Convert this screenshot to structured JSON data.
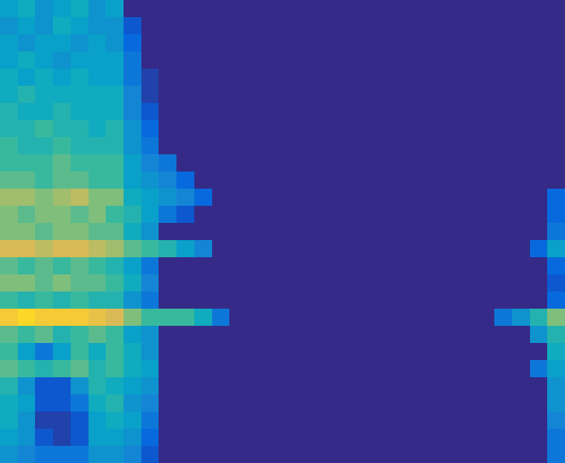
{
  "chart_data": {
    "type": "heatmap",
    "tick_labels": false,
    "grid": false,
    "xlim": [
      0,
      32
    ],
    "ylim": [
      0,
      27
    ],
    "color_range": [
      0,
      1
    ],
    "cells": [
      [
        0.35,
        0.4,
        0.3,
        0.35,
        0.4,
        0.3,
        0.35,
        0,
        0,
        0,
        0,
        0,
        0,
        0,
        0,
        0,
        0,
        0,
        0,
        0,
        0,
        0,
        0,
        0,
        0,
        0,
        0,
        0,
        0,
        0,
        0,
        0
      ],
      [
        0.3,
        0.35,
        0.3,
        0.4,
        0.35,
        0.3,
        0.3,
        0.1,
        0,
        0,
        0,
        0,
        0,
        0,
        0,
        0,
        0,
        0,
        0,
        0,
        0,
        0,
        0,
        0,
        0,
        0,
        0,
        0,
        0,
        0,
        0,
        0
      ],
      [
        0.35,
        0.3,
        0.35,
        0.35,
        0.3,
        0.35,
        0.3,
        0.15,
        0,
        0,
        0,
        0,
        0,
        0,
        0,
        0,
        0,
        0,
        0,
        0,
        0,
        0,
        0,
        0,
        0,
        0,
        0,
        0,
        0,
        0,
        0,
        0
      ],
      [
        0.35,
        0.4,
        0.35,
        0.3,
        0.35,
        0.35,
        0.35,
        0.2,
        0,
        0,
        0,
        0,
        0,
        0,
        0,
        0,
        0,
        0,
        0,
        0,
        0,
        0,
        0,
        0,
        0,
        0,
        0,
        0,
        0,
        0,
        0,
        0
      ],
      [
        0.4,
        0.35,
        0.4,
        0.35,
        0.4,
        0.35,
        0.35,
        0.2,
        0.05,
        0,
        0,
        0,
        0,
        0,
        0,
        0,
        0,
        0,
        0,
        0,
        0,
        0,
        0,
        0,
        0,
        0,
        0,
        0,
        0,
        0,
        0,
        0
      ],
      [
        0.4,
        0.45,
        0.4,
        0.4,
        0.4,
        0.4,
        0.4,
        0.25,
        0.05,
        0,
        0,
        0,
        0,
        0,
        0,
        0,
        0,
        0,
        0,
        0,
        0,
        0,
        0,
        0,
        0,
        0,
        0,
        0,
        0,
        0,
        0,
        0
      ],
      [
        0.45,
        0.4,
        0.4,
        0.45,
        0.4,
        0.4,
        0.4,
        0.25,
        0.1,
        0,
        0,
        0,
        0,
        0,
        0,
        0,
        0,
        0,
        0,
        0,
        0,
        0,
        0,
        0,
        0,
        0,
        0,
        0,
        0,
        0,
        0,
        0
      ],
      [
        0.45,
        0.45,
        0.5,
        0.45,
        0.45,
        0.4,
        0.45,
        0.3,
        0.15,
        0,
        0,
        0,
        0,
        0,
        0,
        0,
        0,
        0,
        0,
        0,
        0,
        0,
        0,
        0,
        0,
        0,
        0,
        0,
        0,
        0,
        0,
        0
      ],
      [
        0.5,
        0.45,
        0.45,
        0.5,
        0.45,
        0.45,
        0.45,
        0.3,
        0.2,
        0,
        0,
        0,
        0,
        0,
        0,
        0,
        0,
        0,
        0,
        0,
        0,
        0,
        0,
        0,
        0,
        0,
        0,
        0,
        0,
        0,
        0,
        0
      ],
      [
        0.5,
        0.5,
        0.5,
        0.55,
        0.5,
        0.5,
        0.5,
        0.35,
        0.25,
        0.2,
        0,
        0,
        0,
        0,
        0,
        0,
        0,
        0,
        0,
        0,
        0,
        0,
        0,
        0,
        0,
        0,
        0,
        0,
        0,
        0,
        0,
        0
      ],
      [
        0.55,
        0.55,
        0.5,
        0.55,
        0.55,
        0.5,
        0.5,
        0.35,
        0.3,
        0.25,
        0.15,
        0,
        0,
        0,
        0,
        0,
        0,
        0,
        0,
        0,
        0,
        0,
        0,
        0,
        0,
        0,
        0,
        0,
        0,
        0,
        0,
        0
      ],
      [
        0.65,
        0.65,
        0.6,
        0.65,
        0.7,
        0.6,
        0.6,
        0.4,
        0.35,
        0.3,
        0.25,
        0.15,
        0,
        0,
        0,
        0,
        0,
        0,
        0,
        0,
        0,
        0,
        0,
        0,
        0,
        0,
        0,
        0,
        0,
        0,
        0,
        0.15
      ],
      [
        0.6,
        0.55,
        0.6,
        0.6,
        0.55,
        0.6,
        0.5,
        0.45,
        0.35,
        0.2,
        0.1,
        0,
        0,
        0,
        0,
        0,
        0,
        0,
        0,
        0,
        0,
        0,
        0,
        0,
        0,
        0,
        0,
        0,
        0,
        0,
        0,
        0.15
      ],
      [
        0.6,
        0.6,
        0.55,
        0.6,
        0.6,
        0.55,
        0.55,
        0.4,
        0.3,
        0,
        0,
        0,
        0,
        0,
        0,
        0,
        0,
        0,
        0,
        0,
        0,
        0,
        0,
        0,
        0,
        0,
        0,
        0,
        0,
        0,
        0,
        0.2
      ],
      [
        0.75,
        0.75,
        0.7,
        0.75,
        0.75,
        0.7,
        0.65,
        0.55,
        0.5,
        0.45,
        0.35,
        0.25,
        0,
        0,
        0,
        0,
        0,
        0,
        0,
        0,
        0,
        0,
        0,
        0,
        0,
        0,
        0,
        0,
        0,
        0,
        0.15,
        0.35
      ],
      [
        0.55,
        0.5,
        0.55,
        0.5,
        0.55,
        0.5,
        0.45,
        0.35,
        0.2,
        0,
        0,
        0,
        0,
        0,
        0,
        0,
        0,
        0,
        0,
        0,
        0,
        0,
        0,
        0,
        0,
        0,
        0,
        0,
        0,
        0,
        0,
        0.15
      ],
      [
        0.6,
        0.6,
        0.55,
        0.6,
        0.55,
        0.55,
        0.5,
        0.4,
        0.25,
        0,
        0,
        0,
        0,
        0,
        0,
        0,
        0,
        0,
        0,
        0,
        0,
        0,
        0,
        0,
        0,
        0,
        0,
        0,
        0,
        0,
        0,
        0.1
      ],
      [
        0.5,
        0.45,
        0.5,
        0.45,
        0.5,
        0.45,
        0.45,
        0.3,
        0.2,
        0,
        0,
        0,
        0,
        0,
        0,
        0,
        0,
        0,
        0,
        0,
        0,
        0,
        0,
        0,
        0,
        0,
        0,
        0,
        0,
        0,
        0,
        0.15
      ],
      [
        0.85,
        0.9,
        0.85,
        0.85,
        0.85,
        0.8,
        0.75,
        0.6,
        0.5,
        0.5,
        0.5,
        0.4,
        0.2,
        0,
        0,
        0,
        0,
        0,
        0,
        0,
        0,
        0,
        0,
        0,
        0,
        0,
        0,
        0,
        0.2,
        0.3,
        0.45,
        0.6
      ],
      [
        0.55,
        0.5,
        0.55,
        0.45,
        0.5,
        0.55,
        0.5,
        0.35,
        0.3,
        0,
        0,
        0,
        0,
        0,
        0,
        0,
        0,
        0,
        0,
        0,
        0,
        0,
        0,
        0,
        0,
        0,
        0,
        0,
        0,
        0,
        0.3,
        0.45
      ],
      [
        0.5,
        0.35,
        0.2,
        0.35,
        0.5,
        0.4,
        0.5,
        0.4,
        0.3,
        0,
        0,
        0,
        0,
        0,
        0,
        0,
        0,
        0,
        0,
        0,
        0,
        0,
        0,
        0,
        0,
        0,
        0,
        0,
        0,
        0,
        0,
        0.4
      ],
      [
        0.55,
        0.5,
        0.45,
        0.5,
        0.55,
        0.45,
        0.5,
        0.4,
        0.35,
        0,
        0,
        0,
        0,
        0,
        0,
        0,
        0,
        0,
        0,
        0,
        0,
        0,
        0,
        0,
        0,
        0,
        0,
        0,
        0,
        0,
        0.2,
        0.35
      ],
      [
        0.45,
        0.3,
        0.1,
        0.1,
        0.3,
        0.45,
        0.4,
        0.35,
        0.3,
        0,
        0,
        0,
        0,
        0,
        0,
        0,
        0,
        0,
        0,
        0,
        0,
        0,
        0,
        0,
        0,
        0,
        0,
        0,
        0,
        0,
        0,
        0.3
      ],
      [
        0.4,
        0.35,
        0.1,
        0.1,
        0.2,
        0.4,
        0.45,
        0.3,
        0.25,
        0,
        0,
        0,
        0,
        0,
        0,
        0,
        0,
        0,
        0,
        0,
        0,
        0,
        0,
        0,
        0,
        0,
        0,
        0,
        0,
        0,
        0,
        0.3
      ],
      [
        0.4,
        0.3,
        0.05,
        0.05,
        0.1,
        0.35,
        0.4,
        0.35,
        0.2,
        0,
        0,
        0,
        0,
        0,
        0,
        0,
        0,
        0,
        0,
        0,
        0,
        0,
        0,
        0,
        0,
        0,
        0,
        0,
        0,
        0,
        0,
        0.25
      ],
      [
        0.35,
        0.3,
        0.1,
        0.05,
        0.1,
        0.35,
        0.35,
        0.3,
        0.15,
        0,
        0,
        0,
        0,
        0,
        0,
        0,
        0,
        0,
        0,
        0,
        0,
        0,
        0,
        0,
        0,
        0,
        0,
        0,
        0,
        0,
        0,
        0.2
      ],
      [
        0.3,
        0.25,
        0.2,
        0.2,
        0.2,
        0.3,
        0.3,
        0.25,
        0.1,
        0,
        0,
        0,
        0,
        0,
        0,
        0,
        0,
        0,
        0,
        0,
        0,
        0,
        0,
        0,
        0,
        0,
        0,
        0,
        0,
        0,
        0,
        0.2
      ]
    ]
  }
}
